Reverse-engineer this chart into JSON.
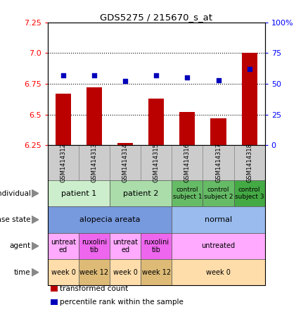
{
  "title": "GDS5275 / 215670_s_at",
  "samples": [
    "GSM1414312",
    "GSM1414313",
    "GSM1414314",
    "GSM1414315",
    "GSM1414316",
    "GSM1414317",
    "GSM1414318"
  ],
  "bar_values": [
    6.67,
    6.72,
    6.27,
    6.63,
    6.52,
    6.47,
    7.0
  ],
  "dot_values": [
    57,
    57,
    52,
    57,
    55,
    53,
    62
  ],
  "ylim_left": [
    6.25,
    7.25
  ],
  "ylim_right": [
    0,
    100
  ],
  "yticks_left": [
    6.25,
    6.5,
    6.75,
    7.0,
    7.25
  ],
  "yticks_right": [
    0,
    25,
    50,
    75,
    100
  ],
  "ytick_labels_right": [
    "0",
    "25",
    "50",
    "75",
    "100%"
  ],
  "hlines": [
    6.5,
    6.75,
    7.0
  ],
  "bar_color": "#bb0000",
  "dot_color": "#0000bb",
  "bar_bottom": 6.25,
  "individual_row": {
    "cells": [
      {
        "label": "patient 1",
        "span": [
          0,
          2
        ],
        "color": "#cceecc",
        "fontsize": 8
      },
      {
        "label": "patient 2",
        "span": [
          2,
          4
        ],
        "color": "#aaddaa",
        "fontsize": 8
      },
      {
        "label": "control\nsubject 1",
        "span": [
          4,
          5
        ],
        "color": "#66bb66",
        "fontsize": 6.5
      },
      {
        "label": "control\nsubject 2",
        "span": [
          5,
          6
        ],
        "color": "#66bb66",
        "fontsize": 6.5
      },
      {
        "label": "control\nsubject 3",
        "span": [
          6,
          7
        ],
        "color": "#44aa44",
        "fontsize": 6.5
      }
    ],
    "label": "individual"
  },
  "disease_row": {
    "cells": [
      {
        "label": "alopecia areata",
        "span": [
          0,
          4
        ],
        "color": "#7799dd",
        "fontsize": 8
      },
      {
        "label": "normal",
        "span": [
          4,
          7
        ],
        "color": "#99bbee",
        "fontsize": 8
      }
    ],
    "label": "disease state"
  },
  "agent_row": {
    "cells": [
      {
        "label": "untreat\ned",
        "span": [
          0,
          1
        ],
        "color": "#ffaaff",
        "fontsize": 7
      },
      {
        "label": "ruxolini\ntib",
        "span": [
          1,
          2
        ],
        "color": "#ee66ee",
        "fontsize": 7
      },
      {
        "label": "untreat\ned",
        "span": [
          2,
          3
        ],
        "color": "#ffaaff",
        "fontsize": 7
      },
      {
        "label": "ruxolini\ntib",
        "span": [
          3,
          4
        ],
        "color": "#ee66ee",
        "fontsize": 7
      },
      {
        "label": "untreated",
        "span": [
          4,
          7
        ],
        "color": "#ffaaff",
        "fontsize": 7
      }
    ],
    "label": "agent"
  },
  "time_row": {
    "cells": [
      {
        "label": "week 0",
        "span": [
          0,
          1
        ],
        "color": "#ffddaa",
        "fontsize": 7
      },
      {
        "label": "week 12",
        "span": [
          1,
          2
        ],
        "color": "#ddbb77",
        "fontsize": 7
      },
      {
        "label": "week 0",
        "span": [
          2,
          3
        ],
        "color": "#ffddaa",
        "fontsize": 7
      },
      {
        "label": "week 12",
        "span": [
          3,
          4
        ],
        "color": "#ddbb77",
        "fontsize": 7
      },
      {
        "label": "week 0",
        "span": [
          4,
          7
        ],
        "color": "#ffddaa",
        "fontsize": 7
      }
    ],
    "label": "time"
  },
  "legend_items": [
    {
      "color": "#bb0000",
      "label": "transformed count"
    },
    {
      "color": "#0000bb",
      "label": "percentile rank within the sample"
    }
  ],
  "chart_bg": "#ffffff"
}
